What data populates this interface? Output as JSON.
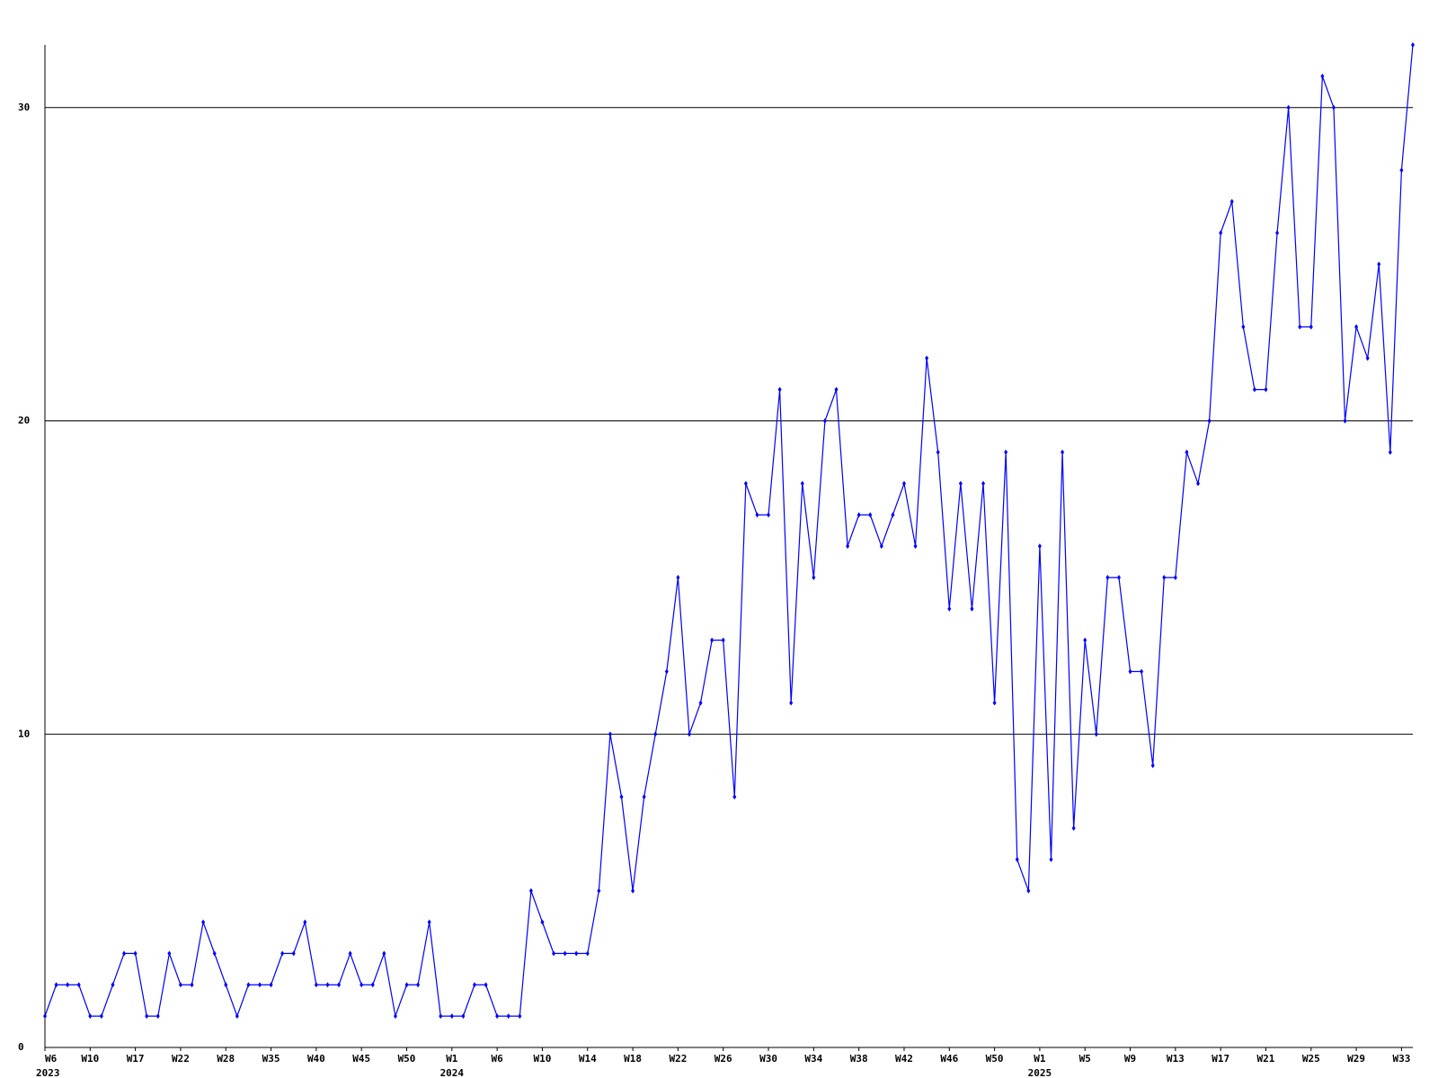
{
  "chart_data": {
    "type": "line",
    "categories": [
      "W6",
      null,
      null,
      null,
      "W10",
      null,
      null,
      null,
      "W17",
      null,
      null,
      null,
      "W22",
      null,
      null,
      null,
      "W28",
      null,
      null,
      null,
      "W35",
      null,
      null,
      null,
      "W40",
      null,
      null,
      null,
      "W45",
      null,
      null,
      null,
      "W50",
      null,
      null,
      null,
      "W1",
      null,
      null,
      null,
      "W6",
      null,
      null,
      null,
      "W10",
      null,
      null,
      null,
      "W14",
      null,
      null,
      null,
      "W18",
      null,
      null,
      null,
      "W22",
      null,
      null,
      null,
      "W26",
      null,
      null,
      null,
      "W30",
      null,
      null,
      null,
      "W34",
      null,
      null,
      null,
      "W38",
      null,
      null,
      null,
      "W42",
      null,
      null,
      null,
      "W46",
      null,
      null,
      null,
      "W50",
      null,
      null,
      null,
      "W1",
      null,
      null,
      null,
      "W5",
      null,
      null,
      null,
      "W9",
      null,
      null,
      null,
      "W13",
      null,
      null,
      null,
      "W17",
      null,
      null,
      null,
      "W21",
      null,
      null,
      null,
      "W25",
      null,
      null,
      null,
      "W29",
      null,
      null,
      null,
      "W33",
      null
    ],
    "category_years": [
      "2023",
      null,
      null,
      null,
      null,
      null,
      null,
      null,
      null,
      null,
      null,
      null,
      null,
      null,
      null,
      null,
      null,
      null,
      null,
      null,
      null,
      null,
      null,
      null,
      null,
      null,
      null,
      null,
      null,
      null,
      null,
      null,
      null,
      null,
      null,
      null,
      "2024",
      null,
      null,
      null,
      null,
      null,
      null,
      null,
      null,
      null,
      null,
      null,
      null,
      null,
      null,
      null,
      null,
      null,
      null,
      null,
      null,
      null,
      null,
      null,
      null,
      null,
      null,
      null,
      null,
      null,
      null,
      null,
      null,
      null,
      null,
      null,
      null,
      null,
      null,
      null,
      null,
      null,
      null,
      null,
      null,
      null,
      null,
      null,
      null,
      null,
      null,
      null,
      "2025",
      null,
      null,
      null,
      null,
      null,
      null,
      null,
      null,
      null,
      null,
      null,
      null,
      null,
      null,
      null,
      null,
      null,
      null,
      null,
      null,
      null,
      null,
      null,
      null,
      null,
      null,
      null,
      null,
      null,
      null,
      null,
      null,
      null
    ],
    "values": [
      1,
      2,
      2,
      2,
      1,
      1,
      2,
      3,
      3,
      1,
      1,
      3,
      2,
      2,
      4,
      3,
      2,
      1,
      2,
      2,
      2,
      3,
      3,
      4,
      2,
      2,
      2,
      3,
      2,
      2,
      3,
      1,
      2,
      2,
      4,
      1,
      1,
      1,
      2,
      2,
      1,
      1,
      1,
      5,
      4,
      3,
      3,
      3,
      3,
      5,
      10,
      8,
      5,
      8,
      10,
      12,
      15,
      10,
      11,
      13,
      13,
      8,
      18,
      17,
      17,
      21,
      11,
      18,
      15,
      20,
      21,
      16,
      17,
      17,
      16,
      17,
      18,
      16,
      22,
      19,
      14,
      18,
      14,
      18,
      11,
      19,
      6,
      5,
      16,
      6,
      19,
      7,
      13,
      10,
      15,
      15,
      12,
      12,
      9,
      15,
      15,
      19,
      18,
      20,
      26,
      27,
      23,
      21,
      21,
      26,
      30,
      23,
      23,
      31,
      30,
      20,
      23,
      22,
      25,
      19,
      28,
      32
    ],
    "color": "#0000ff",
    "ylim": [
      0,
      32
    ],
    "yticks": [
      0,
      10,
      20,
      30
    ],
    "grid": true
  }
}
